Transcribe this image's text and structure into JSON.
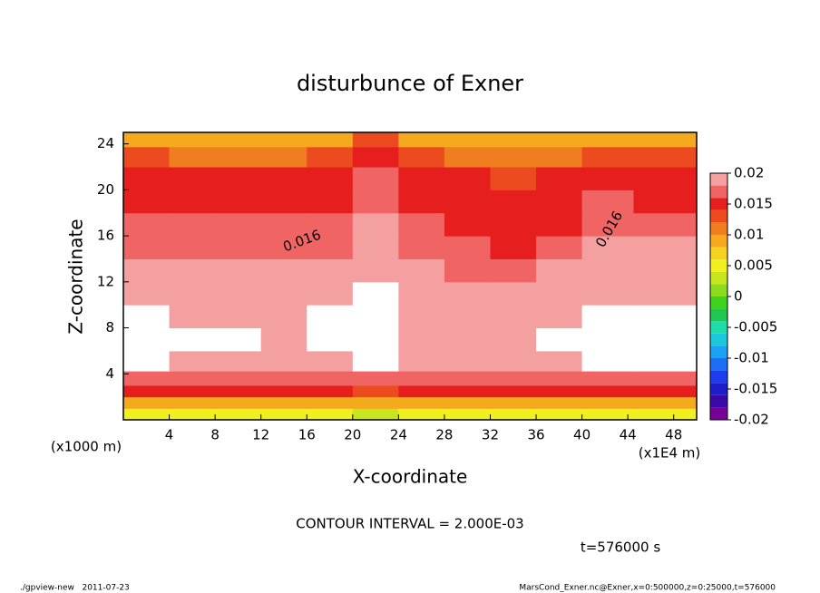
{
  "chart_data": {
    "type": "contour",
    "title": "disturbunce of Exner",
    "xlabel": "X-coordinate",
    "ylabel": "Z-coordinate",
    "x_unit": "(x1E4 m)",
    "y_unit": "(x1000 m)",
    "xlim": [
      0,
      50
    ],
    "ylim": [
      0,
      25
    ],
    "xticks": [
      4,
      8,
      12,
      16,
      20,
      24,
      28,
      32,
      36,
      40,
      44,
      48
    ],
    "yticks": [
      4,
      8,
      12,
      16,
      20,
      24
    ],
    "x": [
      2,
      6,
      10,
      14,
      18,
      22,
      26,
      30,
      34,
      38,
      42,
      47
    ],
    "y": [
      0.5,
      1.5,
      2.5,
      3.5,
      5,
      7,
      9,
      11,
      13,
      15,
      17,
      19,
      21,
      23,
      24.5
    ],
    "z": [
      [
        0.004,
        0.004,
        0.004,
        0.004,
        0.004,
        0.003,
        0.004,
        0.004,
        0.004,
        0.004,
        0.004,
        0.004
      ],
      [
        0.009,
        0.009,
        0.009,
        0.009,
        0.009,
        0.008,
        0.009,
        0.009,
        0.009,
        0.009,
        0.009,
        0.009
      ],
      [
        0.014,
        0.014,
        0.014,
        0.014,
        0.014,
        0.013,
        0.014,
        0.014,
        0.014,
        0.014,
        0.014,
        0.014
      ],
      [
        0.0165,
        0.0165,
        0.0165,
        0.0165,
        0.0165,
        0.0165,
        0.0165,
        0.0165,
        0.0165,
        0.0165,
        0.0165,
        0.0165
      ],
      [
        0.0205,
        0.0195,
        0.019,
        0.0185,
        0.019,
        0.0205,
        0.019,
        0.0185,
        0.0185,
        0.019,
        0.0205,
        0.0205
      ],
      [
        0.021,
        0.0205,
        0.0202,
        0.0195,
        0.0202,
        0.0215,
        0.0198,
        0.0192,
        0.0192,
        0.0202,
        0.021,
        0.0212
      ],
      [
        0.0208,
        0.0198,
        0.0196,
        0.0192,
        0.0202,
        0.0215,
        0.0196,
        0.019,
        0.019,
        0.0198,
        0.0212,
        0.021
      ],
      [
        0.0196,
        0.0192,
        0.019,
        0.0188,
        0.0192,
        0.0208,
        0.019,
        0.0186,
        0.0185,
        0.019,
        0.0198,
        0.0198
      ],
      [
        0.0188,
        0.0185,
        0.0185,
        0.0184,
        0.0186,
        0.0198,
        0.0185,
        0.0178,
        0.0172,
        0.0182,
        0.019,
        0.0188
      ],
      [
        0.0178,
        0.0172,
        0.017,
        0.0172,
        0.0178,
        0.019,
        0.0172,
        0.0162,
        0.0158,
        0.0168,
        0.0182,
        0.018
      ],
      [
        0.0168,
        0.0162,
        0.016,
        0.0162,
        0.0165,
        0.0182,
        0.0162,
        0.0156,
        0.0152,
        0.0158,
        0.0168,
        0.0166
      ],
      [
        0.0158,
        0.0155,
        0.0152,
        0.0154,
        0.0156,
        0.0172,
        0.0154,
        0.015,
        0.0148,
        0.0152,
        0.016,
        0.0158
      ],
      [
        0.0145,
        0.0142,
        0.014,
        0.0142,
        0.0145,
        0.016,
        0.0143,
        0.014,
        0.0138,
        0.014,
        0.0146,
        0.0146
      ],
      [
        0.0122,
        0.0118,
        0.0116,
        0.0118,
        0.012,
        0.0142,
        0.012,
        0.0115,
        0.0112,
        0.0118,
        0.0125,
        0.0125
      ],
      [
        0.0095,
        0.009,
        0.0088,
        0.009,
        0.0095,
        0.012,
        0.0092,
        0.0085,
        0.0082,
        0.009,
        0.0098,
        0.0098
      ]
    ],
    "colorbar": {
      "levels": [
        -0.02,
        -0.018,
        -0.016,
        -0.014,
        -0.012,
        -0.01,
        -0.008,
        -0.006,
        -0.004,
        -0.002,
        0,
        0.002,
        0.004,
        0.006,
        0.008,
        0.01,
        0.012,
        0.014,
        0.016,
        0.018,
        0.02
      ],
      "colors": [
        "#780096",
        "#3a0aa8",
        "#1e1ec8",
        "#1e3cf0",
        "#1e6ef5",
        "#1ea0f5",
        "#1ec8dc",
        "#1edcaa",
        "#1ec850",
        "#3cd21e",
        "#8cdc1e",
        "#c8e61e",
        "#f0f01e",
        "#f5d21e",
        "#f5aa1e",
        "#f07d1e",
        "#eb4b1e",
        "#e61e1e",
        "#f06464",
        "#f5a0a0"
      ],
      "over_color": "#ffffff",
      "ticks": [
        0.02,
        0.015,
        0.01,
        0.005,
        0,
        -0.005,
        -0.01,
        -0.015,
        -0.02
      ]
    },
    "contour_labels": [
      "0.016",
      "0.016"
    ],
    "annotations": [
      "CONTOUR INTERVAL = 2.000E-03",
      "t=576000 s"
    ],
    "footer_left": "./gpview-new   2011-07-23",
    "footer_right": "MarsCond_Exner.nc@Exner,x=0:500000,z=0:25000,t=576000"
  }
}
